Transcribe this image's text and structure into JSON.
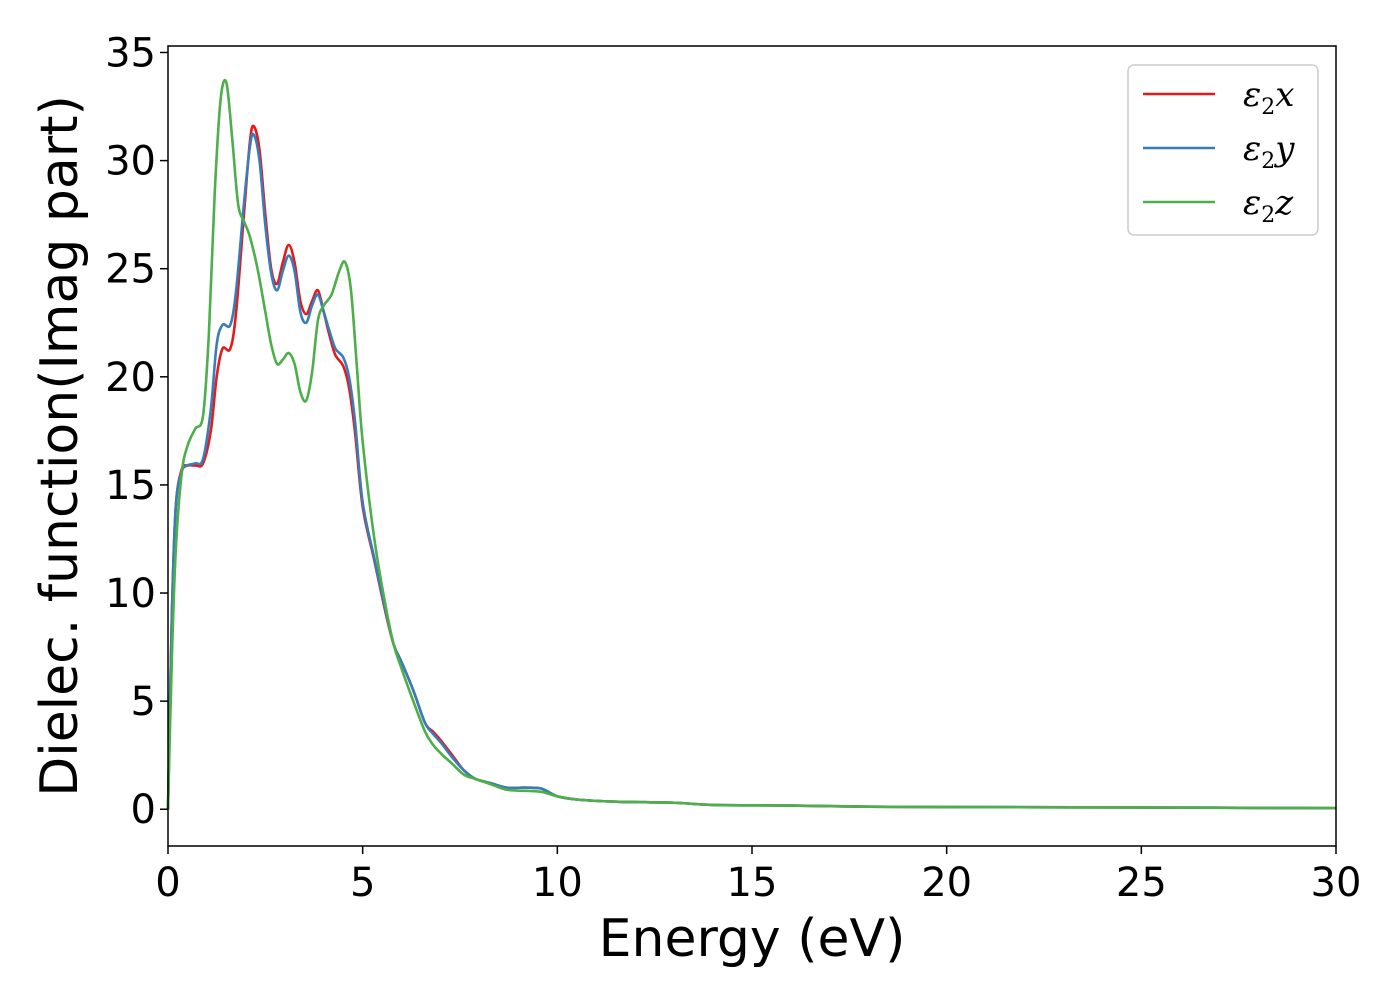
{
  "chart_data": {
    "type": "line",
    "xlabel": "Energy (eV)",
    "ylabel": "Dielec. function(Imag part)",
    "xlim": [
      0,
      30
    ],
    "ylim": [
      -1.7,
      35.3
    ],
    "xticks": [
      0,
      5,
      10,
      15,
      20,
      25,
      30
    ],
    "yticks": [
      0,
      5,
      10,
      15,
      20,
      25,
      30,
      35
    ],
    "grid": false,
    "legend_position": "top-right",
    "series": [
      {
        "name": "ε2x",
        "symbol": "ε",
        "subscript": "2",
        "axis": "x",
        "color": "#e41a1c",
        "points": [
          [
            0,
            0
          ],
          [
            0.1,
            9
          ],
          [
            0.2,
            14
          ],
          [
            0.35,
            15.7
          ],
          [
            0.5,
            15.9
          ],
          [
            0.7,
            15.9
          ],
          [
            0.9,
            16.0
          ],
          [
            1.1,
            17.5
          ],
          [
            1.25,
            20.0
          ],
          [
            1.4,
            21.3
          ],
          [
            1.6,
            21.3
          ],
          [
            1.75,
            23.0
          ],
          [
            1.95,
            27.5
          ],
          [
            2.1,
            30.8
          ],
          [
            2.2,
            31.6
          ],
          [
            2.35,
            30.5
          ],
          [
            2.5,
            27.5
          ],
          [
            2.65,
            25.0
          ],
          [
            2.8,
            24.3
          ],
          [
            2.95,
            25.3
          ],
          [
            3.1,
            26.1
          ],
          [
            3.25,
            25.3
          ],
          [
            3.4,
            23.5
          ],
          [
            3.55,
            22.9
          ],
          [
            3.7,
            23.5
          ],
          [
            3.85,
            24.0
          ],
          [
            4.0,
            23.0
          ],
          [
            4.15,
            21.9
          ],
          [
            4.3,
            21.0
          ],
          [
            4.5,
            20.5
          ],
          [
            4.65,
            19.5
          ],
          [
            4.8,
            17.5
          ],
          [
            5.0,
            14.0
          ],
          [
            5.3,
            11.5
          ],
          [
            5.6,
            9.0
          ],
          [
            5.8,
            7.6
          ],
          [
            6.0,
            6.8
          ],
          [
            6.3,
            5.5
          ],
          [
            6.6,
            4.0
          ],
          [
            6.8,
            3.6
          ],
          [
            7.0,
            3.2
          ],
          [
            7.3,
            2.5
          ],
          [
            7.6,
            1.8
          ],
          [
            7.9,
            1.4
          ],
          [
            8.3,
            1.2
          ],
          [
            8.7,
            1.0
          ],
          [
            9.2,
            1.0
          ],
          [
            9.6,
            0.95
          ],
          [
            10.0,
            0.6
          ],
          [
            10.5,
            0.45
          ],
          [
            11.5,
            0.35
          ],
          [
            13,
            0.3
          ],
          [
            14,
            0.2
          ],
          [
            16,
            0.17
          ],
          [
            18,
            0.12
          ],
          [
            20,
            0.1
          ],
          [
            25,
            0.08
          ],
          [
            30,
            0.05
          ]
        ]
      },
      {
        "name": "ε2y",
        "symbol": "ε",
        "subscript": "2",
        "axis": "y",
        "color": "#377eb8",
        "points": [
          [
            0,
            0
          ],
          [
            0.1,
            9
          ],
          [
            0.2,
            14
          ],
          [
            0.35,
            15.6
          ],
          [
            0.5,
            15.9
          ],
          [
            0.7,
            16.0
          ],
          [
            0.9,
            16.2
          ],
          [
            1.1,
            18.5
          ],
          [
            1.25,
            21.5
          ],
          [
            1.4,
            22.4
          ],
          [
            1.6,
            22.4
          ],
          [
            1.75,
            24.0
          ],
          [
            1.95,
            28.0
          ],
          [
            2.1,
            30.6
          ],
          [
            2.2,
            31.2
          ],
          [
            2.35,
            30.0
          ],
          [
            2.5,
            27.0
          ],
          [
            2.65,
            24.8
          ],
          [
            2.8,
            24.0
          ],
          [
            2.95,
            24.9
          ],
          [
            3.1,
            25.6
          ],
          [
            3.25,
            24.9
          ],
          [
            3.4,
            23.0
          ],
          [
            3.55,
            22.5
          ],
          [
            3.7,
            23.3
          ],
          [
            3.85,
            23.8
          ],
          [
            4.0,
            23.0
          ],
          [
            4.15,
            22.1
          ],
          [
            4.3,
            21.3
          ],
          [
            4.5,
            20.9
          ],
          [
            4.65,
            20.0
          ],
          [
            4.8,
            18.0
          ],
          [
            5.0,
            14.2
          ],
          [
            5.3,
            11.6
          ],
          [
            5.6,
            9.1
          ],
          [
            5.8,
            7.6
          ],
          [
            6.0,
            6.8
          ],
          [
            6.3,
            5.5
          ],
          [
            6.6,
            4.0
          ],
          [
            6.8,
            3.5
          ],
          [
            7.0,
            3.1
          ],
          [
            7.3,
            2.4
          ],
          [
            7.6,
            1.8
          ],
          [
            7.9,
            1.4
          ],
          [
            8.3,
            1.2
          ],
          [
            8.7,
            1.0
          ],
          [
            9.2,
            1.0
          ],
          [
            9.6,
            0.95
          ],
          [
            10.0,
            0.6
          ],
          [
            10.5,
            0.45
          ],
          [
            11.5,
            0.35
          ],
          [
            13,
            0.3
          ],
          [
            14,
            0.2
          ],
          [
            16,
            0.17
          ],
          [
            18,
            0.12
          ],
          [
            20,
            0.1
          ],
          [
            25,
            0.08
          ],
          [
            30,
            0.05
          ]
        ]
      },
      {
        "name": "ε2z",
        "symbol": "ε",
        "subscript": "2",
        "axis": "z",
        "color": "#4daf4a",
        "points": [
          [
            0,
            0
          ],
          [
            0.1,
            7
          ],
          [
            0.2,
            12
          ],
          [
            0.35,
            15.5
          ],
          [
            0.5,
            16.8
          ],
          [
            0.7,
            17.6
          ],
          [
            0.9,
            18.2
          ],
          [
            1.05,
            22.0
          ],
          [
            1.2,
            28.5
          ],
          [
            1.35,
            32.8
          ],
          [
            1.5,
            33.6
          ],
          [
            1.65,
            31.0
          ],
          [
            1.8,
            28.0
          ],
          [
            1.95,
            27.2
          ],
          [
            2.1,
            26.5
          ],
          [
            2.3,
            25.0
          ],
          [
            2.5,
            23.0
          ],
          [
            2.65,
            21.5
          ],
          [
            2.8,
            20.6
          ],
          [
            2.95,
            20.8
          ],
          [
            3.1,
            21.1
          ],
          [
            3.25,
            20.6
          ],
          [
            3.4,
            19.3
          ],
          [
            3.55,
            18.9
          ],
          [
            3.7,
            20.2
          ],
          [
            3.85,
            22.6
          ],
          [
            4.0,
            23.3
          ],
          [
            4.2,
            23.8
          ],
          [
            4.4,
            24.9
          ],
          [
            4.55,
            25.3
          ],
          [
            4.7,
            24.0
          ],
          [
            4.85,
            20.5
          ],
          [
            5.0,
            17.0
          ],
          [
            5.3,
            12.5
          ],
          [
            5.6,
            9.3
          ],
          [
            5.8,
            7.6
          ],
          [
            6.0,
            6.5
          ],
          [
            6.3,
            5.0
          ],
          [
            6.6,
            3.6
          ],
          [
            6.8,
            3.0
          ],
          [
            7.0,
            2.6
          ],
          [
            7.3,
            2.1
          ],
          [
            7.6,
            1.6
          ],
          [
            7.9,
            1.4
          ],
          [
            8.3,
            1.15
          ],
          [
            8.7,
            0.9
          ],
          [
            9.2,
            0.85
          ],
          [
            9.6,
            0.8
          ],
          [
            10.0,
            0.6
          ],
          [
            10.5,
            0.45
          ],
          [
            11.5,
            0.35
          ],
          [
            13,
            0.3
          ],
          [
            14,
            0.2
          ],
          [
            16,
            0.17
          ],
          [
            18,
            0.12
          ],
          [
            20,
            0.1
          ],
          [
            25,
            0.08
          ],
          [
            30,
            0.05
          ]
        ]
      }
    ]
  }
}
